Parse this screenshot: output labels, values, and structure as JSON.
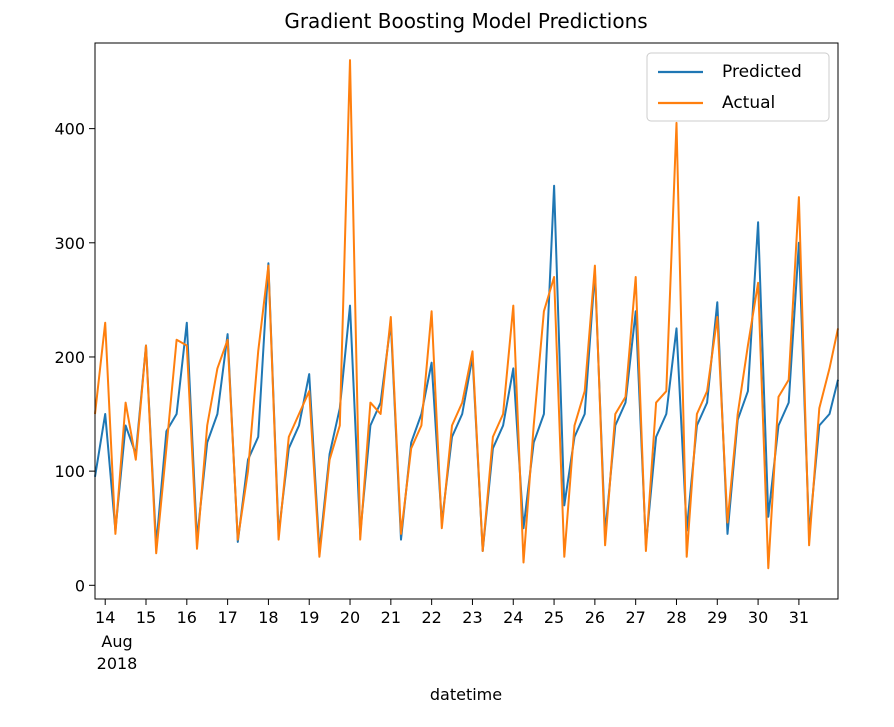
{
  "chart_data": {
    "type": "line",
    "title": "Gradient Boosting Model Predictions",
    "xlabel": "datetime",
    "ylabel": "",
    "ylim": [
      -12,
      475
    ],
    "xlim": [
      "2018-08-13 18:00",
      "2018-08-31 23:00"
    ],
    "yticks": [
      0,
      100,
      200,
      300,
      400
    ],
    "xticks": [
      {
        "date": "2018-08-14",
        "label": "14"
      },
      {
        "date": "2018-08-15",
        "label": "15"
      },
      {
        "date": "2018-08-16",
        "label": "16"
      },
      {
        "date": "2018-08-17",
        "label": "17"
      },
      {
        "date": "2018-08-18",
        "label": "18"
      },
      {
        "date": "2018-08-19",
        "label": "19"
      },
      {
        "date": "2018-08-20",
        "label": "20"
      },
      {
        "date": "2018-08-21",
        "label": "21"
      },
      {
        "date": "2018-08-22",
        "label": "22"
      },
      {
        "date": "2018-08-23",
        "label": "23"
      },
      {
        "date": "2018-08-24",
        "label": "24"
      },
      {
        "date": "2018-08-25",
        "label": "25"
      },
      {
        "date": "2018-08-26",
        "label": "26"
      },
      {
        "date": "2018-08-27",
        "label": "27"
      },
      {
        "date": "2018-08-28",
        "label": "28"
      },
      {
        "date": "2018-08-29",
        "label": "29"
      },
      {
        "date": "2018-08-30",
        "label": "30"
      },
      {
        "date": "2018-08-31",
        "label": "31"
      }
    ],
    "x_sublabel_month": "Aug",
    "x_sublabel_year": "2018",
    "legend_position": "top-right",
    "grid": false,
    "series": [
      {
        "name": "Predicted",
        "color": "#1f77b4",
        "x": [
          "2018-08-13 18:00",
          "2018-08-14 00:00",
          "2018-08-14 06:00",
          "2018-08-14 12:00",
          "2018-08-14 18:00",
          "2018-08-15 00:00",
          "2018-08-15 06:00",
          "2018-08-15 12:00",
          "2018-08-15 18:00",
          "2018-08-16 00:00",
          "2018-08-16 06:00",
          "2018-08-16 12:00",
          "2018-08-16 18:00",
          "2018-08-17 00:00",
          "2018-08-17 06:00",
          "2018-08-17 12:00",
          "2018-08-17 18:00",
          "2018-08-18 00:00",
          "2018-08-18 06:00",
          "2018-08-18 12:00",
          "2018-08-18 18:00",
          "2018-08-19 00:00",
          "2018-08-19 06:00",
          "2018-08-19 12:00",
          "2018-08-19 18:00",
          "2018-08-20 00:00",
          "2018-08-20 06:00",
          "2018-08-20 12:00",
          "2018-08-20 18:00",
          "2018-08-21 00:00",
          "2018-08-21 06:00",
          "2018-08-21 12:00",
          "2018-08-21 18:00",
          "2018-08-22 00:00",
          "2018-08-22 06:00",
          "2018-08-22 12:00",
          "2018-08-22 18:00",
          "2018-08-23 00:00",
          "2018-08-23 06:00",
          "2018-08-23 12:00",
          "2018-08-23 18:00",
          "2018-08-24 00:00",
          "2018-08-24 06:00",
          "2018-08-24 12:00",
          "2018-08-24 18:00",
          "2018-08-25 00:00",
          "2018-08-25 06:00",
          "2018-08-25 12:00",
          "2018-08-25 18:00",
          "2018-08-26 00:00",
          "2018-08-26 06:00",
          "2018-08-26 12:00",
          "2018-08-26 18:00",
          "2018-08-27 00:00",
          "2018-08-27 06:00",
          "2018-08-27 12:00",
          "2018-08-27 18:00",
          "2018-08-28 00:00",
          "2018-08-28 06:00",
          "2018-08-28 12:00",
          "2018-08-28 18:00",
          "2018-08-29 00:00",
          "2018-08-29 06:00",
          "2018-08-29 12:00",
          "2018-08-29 18:00",
          "2018-08-30 00:00",
          "2018-08-30 06:00",
          "2018-08-30 12:00",
          "2018-08-30 18:00",
          "2018-08-31 00:00",
          "2018-08-31 06:00",
          "2018-08-31 12:00",
          "2018-08-31 18:00",
          "2018-08-31 23:00"
        ],
        "values": [
          95,
          150,
          48,
          140,
          115,
          210,
          35,
          135,
          150,
          230,
          40,
          125,
          150,
          220,
          38,
          110,
          130,
          282,
          45,
          120,
          140,
          185,
          30,
          115,
          155,
          245,
          45,
          140,
          160,
          230,
          40,
          125,
          150,
          195,
          55,
          130,
          150,
          200,
          30,
          120,
          140,
          190,
          50,
          125,
          150,
          350,
          70,
          130,
          150,
          275,
          45,
          140,
          160,
          240,
          35,
          130,
          150,
          225,
          48,
          140,
          160,
          248,
          45,
          145,
          170,
          318,
          60,
          140,
          160,
          300,
          45,
          140,
          150,
          180
        ]
      },
      {
        "name": "Actual",
        "color": "#ff7f0e",
        "x": [
          "2018-08-13 18:00",
          "2018-08-14 00:00",
          "2018-08-14 06:00",
          "2018-08-14 12:00",
          "2018-08-14 18:00",
          "2018-08-15 00:00",
          "2018-08-15 06:00",
          "2018-08-15 12:00",
          "2018-08-15 18:00",
          "2018-08-16 00:00",
          "2018-08-16 06:00",
          "2018-08-16 12:00",
          "2018-08-16 18:00",
          "2018-08-17 00:00",
          "2018-08-17 06:00",
          "2018-08-17 12:00",
          "2018-08-17 18:00",
          "2018-08-18 00:00",
          "2018-08-18 06:00",
          "2018-08-18 12:00",
          "2018-08-18 18:00",
          "2018-08-19 00:00",
          "2018-08-19 06:00",
          "2018-08-19 12:00",
          "2018-08-19 18:00",
          "2018-08-20 00:00",
          "2018-08-20 06:00",
          "2018-08-20 12:00",
          "2018-08-20 18:00",
          "2018-08-21 00:00",
          "2018-08-21 06:00",
          "2018-08-21 12:00",
          "2018-08-21 18:00",
          "2018-08-22 00:00",
          "2018-08-22 06:00",
          "2018-08-22 12:00",
          "2018-08-22 18:00",
          "2018-08-23 00:00",
          "2018-08-23 06:00",
          "2018-08-23 12:00",
          "2018-08-23 18:00",
          "2018-08-24 00:00",
          "2018-08-24 06:00",
          "2018-08-24 12:00",
          "2018-08-24 18:00",
          "2018-08-25 00:00",
          "2018-08-25 06:00",
          "2018-08-25 12:00",
          "2018-08-25 18:00",
          "2018-08-26 00:00",
          "2018-08-26 06:00",
          "2018-08-26 12:00",
          "2018-08-26 18:00",
          "2018-08-27 00:00",
          "2018-08-27 06:00",
          "2018-08-27 12:00",
          "2018-08-27 18:00",
          "2018-08-28 00:00",
          "2018-08-28 06:00",
          "2018-08-28 12:00",
          "2018-08-28 18:00",
          "2018-08-29 00:00",
          "2018-08-29 06:00",
          "2018-08-29 12:00",
          "2018-08-29 18:00",
          "2018-08-30 00:00",
          "2018-08-30 06:00",
          "2018-08-30 12:00",
          "2018-08-30 18:00",
          "2018-08-31 00:00",
          "2018-08-31 06:00",
          "2018-08-31 12:00",
          "2018-08-31 18:00",
          "2018-08-31 23:00"
        ],
        "values": [
          150,
          230,
          45,
          160,
          110,
          210,
          28,
          120,
          215,
          210,
          32,
          140,
          190,
          215,
          40,
          100,
          205,
          280,
          40,
          130,
          150,
          170,
          25,
          110,
          140,
          460,
          40,
          160,
          150,
          235,
          45,
          120,
          140,
          240,
          50,
          140,
          160,
          205,
          30,
          130,
          150,
          245,
          20,
          140,
          240,
          270,
          25,
          140,
          170,
          280,
          35,
          150,
          165,
          270,
          30,
          160,
          170,
          405,
          25,
          150,
          170,
          235,
          55,
          150,
          210,
          265,
          15,
          165,
          180,
          340,
          35,
          155,
          190,
          225
        ]
      }
    ]
  }
}
